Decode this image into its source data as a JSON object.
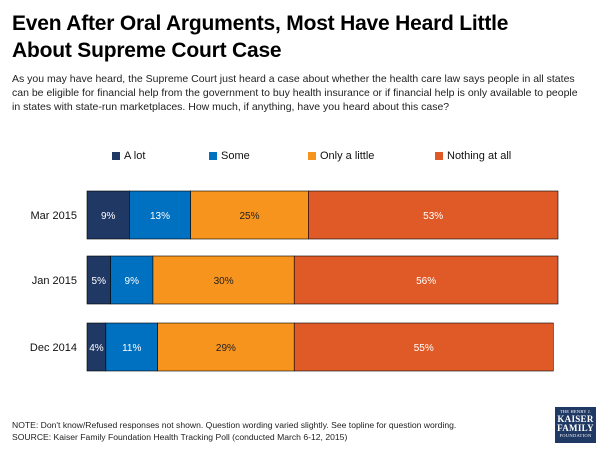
{
  "header": {
    "title": "Even After Oral Arguments, Most Have Heard Little About Supreme Court Case",
    "question": "As you may have heard, the Supreme Court just heard a case about whether the health care law says people in all states can be eligible for financial help from the government to buy health insurance or if financial help is only available to people in states with state-run marketplaces. How much, if anything, have you heard about this case?"
  },
  "chart_data": {
    "type": "bar",
    "orientation": "horizontal",
    "stacked": true,
    "categories": [
      "Mar 2015",
      "Jan 2015",
      "Dec 2014"
    ],
    "series": [
      {
        "name": "A lot",
        "color": "#1f3864",
        "values": [
          9,
          5,
          4
        ]
      },
      {
        "name": "Some",
        "color": "#0070c0",
        "values": [
          13,
          9,
          11
        ]
      },
      {
        "name": "Only a little",
        "color": "#f7941d",
        "values": [
          25,
          30,
          29
        ]
      },
      {
        "name": "Nothing at all",
        "color": "#e05a28",
        "values": [
          53,
          56,
          55
        ]
      }
    ],
    "value_suffix": "%",
    "xlim": [
      0,
      100
    ],
    "legend_position": "top",
    "title": "",
    "xlabel": "",
    "ylabel": ""
  },
  "footer": {
    "note": "NOTE: Don't know/Refused responses not shown. Question wording varied slightly.  See topline for question wording.",
    "source": "SOURCE: Kaiser Family Foundation Health Tracking Poll (conducted March 6-12, 2015)"
  },
  "logo": {
    "line1": "THE HENRY J.",
    "line2": "KAISER",
    "line3": "FAMILY",
    "line4": "FOUNDATION"
  }
}
